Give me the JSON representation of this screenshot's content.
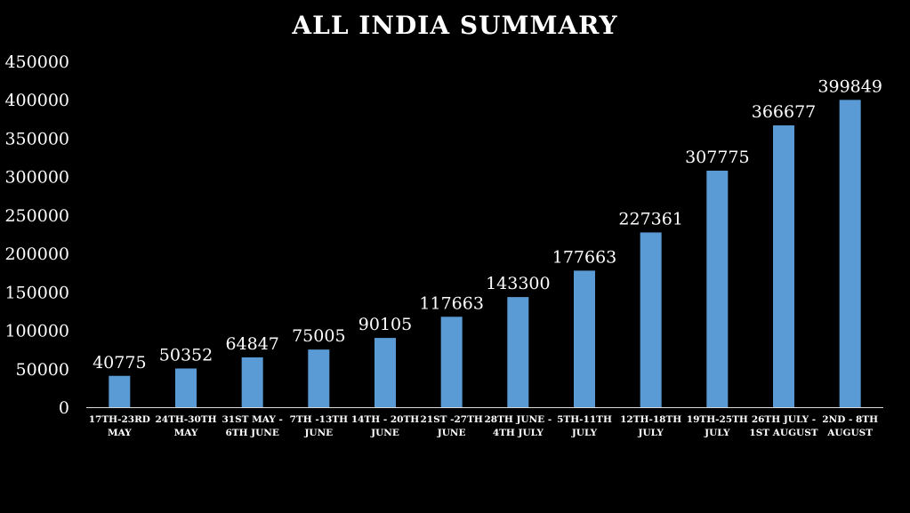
{
  "chart_data": {
    "type": "bar",
    "title": "ALL INDIA  SUMMARY",
    "categories": [
      [
        "17TH-23RD",
        "MAY"
      ],
      [
        "24TH-30TH",
        "MAY"
      ],
      [
        "31ST MAY -",
        "6TH JUNE"
      ],
      [
        "7TH -13TH",
        "JUNE"
      ],
      [
        "14TH - 20TH",
        "JUNE"
      ],
      [
        "21ST -27TH",
        "JUNE"
      ],
      [
        "28TH JUNE -",
        "4TH JULY"
      ],
      [
        "5TH-11TH",
        "JULY"
      ],
      [
        "12TH-18TH",
        "JULY"
      ],
      [
        "19TH-25TH",
        "JULY"
      ],
      [
        "26TH JULY -",
        "1ST AUGUST"
      ],
      [
        "2ND - 8TH",
        "AUGUST"
      ]
    ],
    "values": [
      40775,
      50352,
      64847,
      75005,
      90105,
      117663,
      143300,
      177663,
      227361,
      307775,
      366677,
      399849
    ],
    "data_labels": [
      "40775",
      "50352",
      "64847",
      "75005",
      "90105",
      "117663",
      "143300",
      "177663",
      "227361",
      "307775",
      "366677",
      "399849"
    ],
    "y_ticks": [
      0,
      50000,
      100000,
      150000,
      200000,
      250000,
      300000,
      350000,
      400000,
      450000
    ],
    "ylim": [
      0,
      450000
    ],
    "grid": false,
    "legend": false,
    "colors": {
      "bar": "#5b9bd5",
      "text": "#ffffff",
      "background": "#000000",
      "axis": "#d9d9d9"
    }
  }
}
